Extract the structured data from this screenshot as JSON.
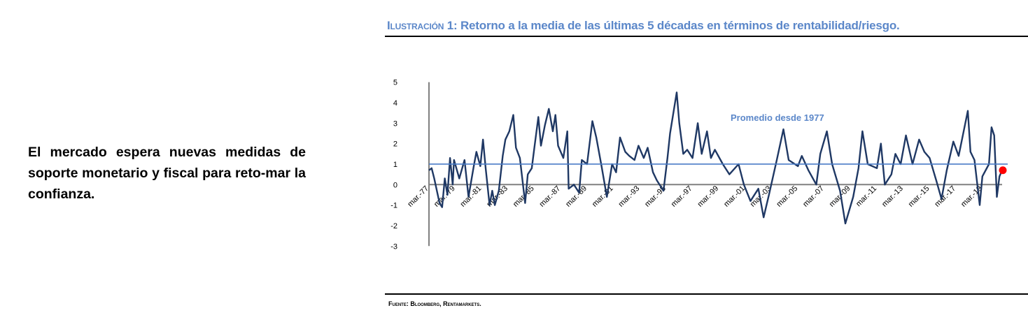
{
  "lead_text": "El mercado espera nuevas medidas de soporte monetario y fiscal para reto-mar la confianza.",
  "figure": {
    "label": "Ilustración 1:",
    "title": "Retorno a la media de las últimas 5 décadas en términos de rentabilidad/riesgo.",
    "source": "Fuente: Bloomberg, Rentamarkets."
  },
  "chart_data": {
    "type": "line",
    "title": "",
    "xlabel": "",
    "ylabel": "",
    "xlim": [
      1977.2,
      2020.7
    ],
    "ylim": [
      -3,
      5
    ],
    "yticks": [
      5,
      4,
      3,
      2,
      1,
      0,
      -1,
      -2,
      -3
    ],
    "xticks": [
      {
        "label": "mar.-77",
        "x": 1977.2
      },
      {
        "label": "mar.-79",
        "x": 1979.2
      },
      {
        "label": "mar.-81",
        "x": 1981.2
      },
      {
        "label": "mar.-83",
        "x": 1983.2
      },
      {
        "label": "mar.-85",
        "x": 1985.2
      },
      {
        "label": "mar.-87",
        "x": 1987.2
      },
      {
        "label": "mar.-89",
        "x": 1989.2
      },
      {
        "label": "mar.-91",
        "x": 1991.2
      },
      {
        "label": "mar.-93",
        "x": 1993.2
      },
      {
        "label": "mar.-95",
        "x": 1995.2
      },
      {
        "label": "mar.-97",
        "x": 1997.2
      },
      {
        "label": "mar.-99",
        "x": 1999.2
      },
      {
        "label": "mar.-01",
        "x": 2001.2
      },
      {
        "label": "mar.-03",
        "x": 2003.2
      },
      {
        "label": "mar.-05",
        "x": 2005.2
      },
      {
        "label": "mar.-07",
        "x": 2007.2
      },
      {
        "label": "mar.-09",
        "x": 2009.2
      },
      {
        "label": "mar.-11",
        "x": 2011.2
      },
      {
        "label": "mar.-13",
        "x": 2013.2
      },
      {
        "label": "mar.-15",
        "x": 2015.2
      },
      {
        "label": "mar.-17",
        "x": 2017.2
      },
      {
        "label": "mar.-19",
        "x": 2019.2
      }
    ],
    "grid": false,
    "colors": {
      "series": "#1f3864",
      "average": "#4a7cc7",
      "zero": "#808080",
      "latest": "#ff0000"
    },
    "series": [
      {
        "x": [
          1977.2,
          1977.4,
          1977.6,
          1978.0,
          1978.2,
          1978.4,
          1978.6,
          1978.8,
          1979.0,
          1979.1,
          1979.5,
          1979.9,
          1980.2,
          1980.6,
          1980.8,
          1981.1,
          1981.3,
          1981.5,
          1981.8,
          1982.0,
          1982.2,
          1982.5,
          1982.8,
          1983.0,
          1983.3,
          1983.6,
          1983.8,
          1984.1,
          1984.5,
          1984.7,
          1985.0,
          1985.2,
          1985.5,
          1985.7,
          1986.0,
          1986.3,
          1986.6,
          1986.8,
          1987.0,
          1987.4,
          1987.7,
          1987.8,
          1988.2,
          1988.6,
          1988.8,
          1989.2,
          1989.6,
          1989.9,
          1990.3,
          1990.7,
          1991.1,
          1991.4,
          1991.7,
          1992.1,
          1992.4,
          1992.8,
          1993.1,
          1993.5,
          1993.8,
          1994.2,
          1994.5,
          1995.0,
          1995.3,
          1995.5,
          1996.0,
          1996.2,
          1996.5,
          1996.8,
          1997.2,
          1997.6,
          1997.9,
          1998.3,
          1998.6,
          1998.9,
          1999.5,
          2000.0,
          2000.7,
          2001.1,
          2001.6,
          2002.2,
          2002.6,
          2003.0,
          2003.6,
          2004.1,
          2004.5,
          2005.2,
          2005.5,
          2006.0,
          2006.6,
          2006.9,
          2007.4,
          2007.8,
          2008.4,
          2008.8,
          2009.4,
          2009.8,
          2010.1,
          2010.5,
          2011.2,
          2011.5,
          2011.8,
          2012.3,
          2012.6,
          2013.0,
          2013.4,
          2013.9,
          2014.4,
          2014.8,
          2015.2,
          2015.7,
          2016.1,
          2016.5,
          2017.0,
          2017.4,
          2018.1,
          2018.3,
          2018.6,
          2019.0,
          2019.2,
          2019.7,
          2019.9,
          2020.1,
          2020.3,
          2020.5,
          2020.7
        ],
        "y": [
          0.7,
          0.8,
          0.3,
          -0.9,
          -1.1,
          0.3,
          -0.5,
          1.3,
          0.0,
          1.2,
          0.3,
          1.2,
          -0.6,
          0.9,
          1.6,
          0.9,
          2.2,
          0.8,
          -1.0,
          -0.3,
          -1.0,
          -0.3,
          1.4,
          2.2,
          2.6,
          3.4,
          1.8,
          1.3,
          -0.9,
          0.5,
          0.8,
          1.8,
          3.3,
          1.9,
          2.9,
          3.7,
          2.6,
          3.4,
          1.9,
          1.3,
          2.6,
          -0.2,
          0.0,
          -0.4,
          1.2,
          1.0,
          3.1,
          2.3,
          0.9,
          -0.6,
          1.0,
          0.6,
          2.3,
          1.6,
          1.4,
          1.2,
          1.9,
          1.3,
          1.8,
          0.6,
          0.2,
          -0.3,
          1.3,
          2.5,
          4.5,
          3.0,
          1.5,
          1.7,
          1.3,
          3.0,
          1.5,
          2.6,
          1.3,
          1.7,
          1.0,
          0.5,
          1.0,
          0.0,
          -0.8,
          -0.2,
          -1.6,
          -0.5,
          1.2,
          2.7,
          1.2,
          0.9,
          1.4,
          0.7,
          0.0,
          1.5,
          2.6,
          1.0,
          -0.3,
          -1.9,
          -0.6,
          0.8,
          2.6,
          1.0,
          0.8,
          2.0,
          0.0,
          0.5,
          1.5,
          1.0,
          2.4,
          1.0,
          2.2,
          1.6,
          1.3,
          0.2,
          -0.7,
          0.7,
          2.1,
          1.4,
          3.6,
          1.6,
          1.2,
          -1.0,
          0.4,
          1.0,
          2.8,
          2.4,
          -0.6,
          0.4,
          0.7
        ]
      }
    ],
    "average": {
      "label": "Promedio desde 1977",
      "value": 1.0
    },
    "latest_point": {
      "x": 2020.7,
      "y": 0.7
    }
  }
}
